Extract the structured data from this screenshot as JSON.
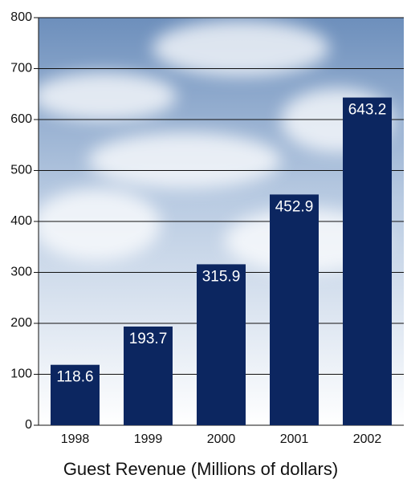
{
  "chart_data": {
    "type": "bar",
    "title": "Guest Revenue (Millions of dollars)",
    "categories": [
      "1998",
      "1999",
      "2000",
      "2001",
      "2002"
    ],
    "values": [
      118.6,
      193.7,
      315.9,
      452.9,
      643.2
    ],
    "color": "#0c2660",
    "ylim": [
      0,
      800
    ],
    "yticks": [
      0,
      100,
      200,
      300,
      400,
      500,
      600,
      700,
      800
    ],
    "grid": true
  }
}
